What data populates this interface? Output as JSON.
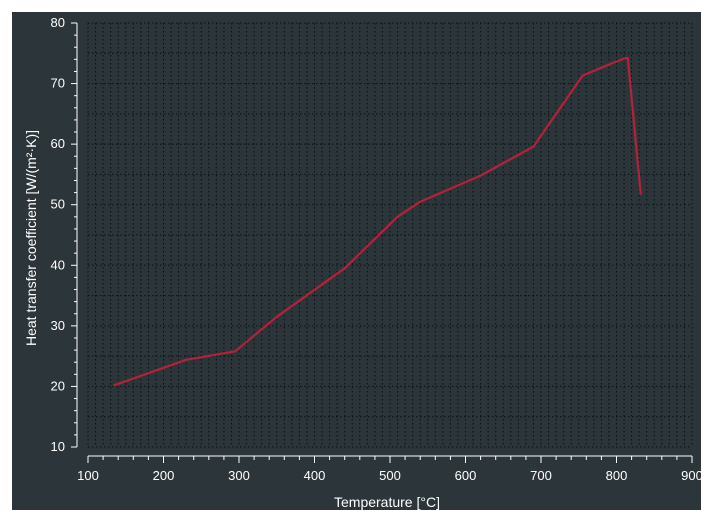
{
  "chart_data": {
    "type": "line",
    "title": "",
    "xlabel": "Temperature [°C]",
    "ylabel": "Heat transfer coefficient [W/(m²·K)]",
    "xlim": [
      100,
      900
    ],
    "ylim": [
      10,
      80
    ],
    "x_ticks": [
      "100",
      "200",
      "300",
      "400",
      "500",
      "600",
      "700",
      "800",
      "900"
    ],
    "y_ticks": [
      "10",
      "20",
      "30",
      "40",
      "50",
      "60",
      "70",
      "80"
    ],
    "grid": true,
    "background_color": "#2c3539",
    "series": [
      {
        "color": "#b5213a",
        "x": [
          135,
          230,
          295,
          350,
          440,
          510,
          540,
          620,
          690,
          755,
          795,
          812,
          815,
          822,
          832
        ],
        "y": [
          20.2,
          24.4,
          25.8,
          31.5,
          39.5,
          48.0,
          50.5,
          54.8,
          59.6,
          71.3,
          73.4,
          74.2,
          74.2,
          65.0,
          51.8
        ]
      }
    ]
  }
}
